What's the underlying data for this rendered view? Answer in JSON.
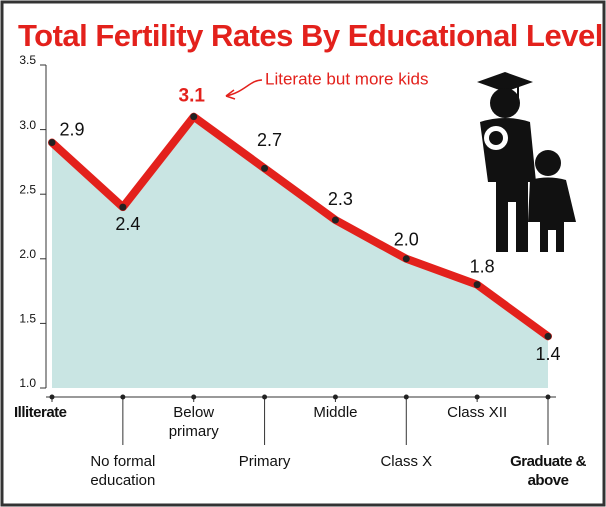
{
  "chart_data": {
    "type": "line",
    "title": "Total Fertility Rates By Educational Level",
    "categories": [
      "Illiterate",
      "No formal education",
      "Below primary",
      "Primary",
      "Middle",
      "Class X",
      "Class XII",
      "Graduate & above"
    ],
    "values": [
      2.9,
      2.4,
      3.1,
      2.7,
      2.3,
      2.0,
      1.8,
      1.4
    ],
    "value_labels": [
      "2.9",
      "2.4",
      "3.1",
      "2.7",
      "2.3",
      "2.0",
      "1.8",
      "1.4"
    ],
    "color": "#e3211c",
    "area_color": "#c9e5e3",
    "ylim": [
      1.0,
      3.5
    ],
    "yticks": [
      {
        "value": 1.0,
        "label": "1.0"
      },
      1.5,
      {
        "value": 2.0,
        "label": "2.0"
      },
      2.5,
      {
        "value": 3.0,
        "label": "3.0"
      },
      3.5
    ],
    "annotation": "Literate but more kids"
  }
}
